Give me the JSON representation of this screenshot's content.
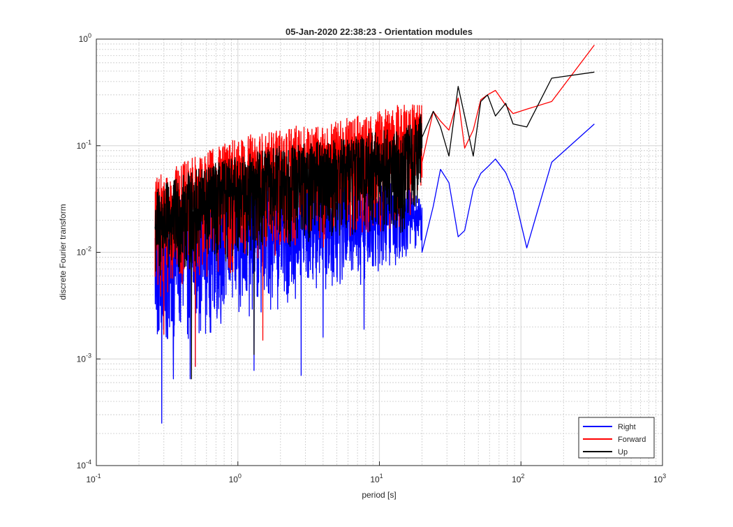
{
  "chart_data": {
    "type": "line",
    "title": "05-Jan-2020 22:38:23 - Orientation modules",
    "xlabel": "period [s]",
    "ylabel": "discrete Fourier transform",
    "x_scale": "log",
    "y_scale": "log",
    "xlim": [
      0.1,
      1000
    ],
    "ylim": [
      0.0001,
      1
    ],
    "grid": true,
    "minor_grid": true,
    "legend_position": "bottom-right",
    "x_tick_labels": [
      {
        "base": "10",
        "exp": "-1"
      },
      {
        "base": "10",
        "exp": "0"
      },
      {
        "base": "10",
        "exp": "1"
      },
      {
        "base": "10",
        "exp": "2"
      },
      {
        "base": "10",
        "exp": "3"
      }
    ],
    "y_tick_labels": [
      {
        "base": "10",
        "exp": "-4"
      },
      {
        "base": "10",
        "exp": "-3"
      },
      {
        "base": "10",
        "exp": "-2"
      },
      {
        "base": "10",
        "exp": "-1"
      },
      {
        "base": "10",
        "exp": "0"
      }
    ],
    "noise_region": {
      "x_start": 0.26,
      "x_end": 20,
      "note": "dense high-frequency oscillating spectrum (period 0.26 s to ~20 s)"
    },
    "series": [
      {
        "name": "Right",
        "color": "#0000ff",
        "noise_envelope": {
          "x": [
            0.26,
            0.5,
            1,
            2,
            4,
            8,
            15,
            20
          ],
          "low": [
            0.0009,
            0.0015,
            0.002,
            0.003,
            0.004,
            0.005,
            0.008,
            0.012
          ],
          "high": [
            0.025,
            0.035,
            0.045,
            0.05,
            0.05,
            0.05,
            0.045,
            0.03
          ]
        },
        "spikes": [
          [
            0.29,
            0.00025
          ],
          [
            0.35,
            0.00065
          ],
          [
            0.5,
            0.00085
          ],
          [
            0.46,
            0.00065
          ],
          [
            1.3,
            0.00078
          ],
          [
            2.8,
            0.0007
          ],
          [
            4.0,
            0.0016
          ],
          [
            7.8,
            0.0019
          ]
        ],
        "x": [
          20,
          24,
          27,
          31,
          36,
          40,
          46,
          52,
          58,
          66,
          78,
          88,
          110,
          165,
          330
        ],
        "y": [
          0.01,
          0.027,
          0.06,
          0.045,
          0.014,
          0.016,
          0.039,
          0.055,
          0.063,
          0.075,
          0.056,
          0.038,
          0.011,
          0.07,
          0.16
        ]
      },
      {
        "name": "Forward",
        "color": "#ff0000",
        "noise_envelope": {
          "x": [
            0.26,
            0.5,
            1,
            2,
            4,
            8,
            15,
            20
          ],
          "low": [
            0.003,
            0.005,
            0.006,
            0.008,
            0.01,
            0.012,
            0.015,
            0.03
          ],
          "high": [
            0.05,
            0.08,
            0.12,
            0.15,
            0.16,
            0.2,
            0.25,
            0.25
          ]
        },
        "spikes": [
          [
            0.5,
            0.00085
          ],
          [
            1.5,
            0.0015
          ],
          [
            0.3,
            0.0017
          ]
        ],
        "x": [
          20,
          24,
          27,
          31,
          36,
          40,
          46,
          52,
          58,
          66,
          78,
          88,
          110,
          165,
          330
        ],
        "y": [
          0.07,
          0.21,
          0.17,
          0.14,
          0.28,
          0.095,
          0.14,
          0.27,
          0.3,
          0.33,
          0.24,
          0.2,
          0.22,
          0.26,
          0.88
        ]
      },
      {
        "name": "Up",
        "color": "#000000",
        "noise_envelope": {
          "x": [
            0.26,
            0.5,
            1,
            2,
            4,
            8,
            15,
            20
          ],
          "low": [
            0.004,
            0.006,
            0.008,
            0.01,
            0.012,
            0.015,
            0.012,
            0.03
          ],
          "high": [
            0.04,
            0.06,
            0.08,
            0.1,
            0.11,
            0.13,
            0.15,
            0.2
          ]
        },
        "spikes": [
          [
            0.47,
            0.00065
          ],
          [
            1.3,
            0.0011
          ]
        ],
        "x": [
          20,
          24,
          27,
          31,
          36,
          40,
          46,
          52,
          58,
          66,
          78,
          88,
          110,
          165,
          330
        ],
        "y": [
          0.12,
          0.21,
          0.15,
          0.08,
          0.36,
          0.19,
          0.08,
          0.26,
          0.3,
          0.19,
          0.25,
          0.16,
          0.15,
          0.43,
          0.49
        ]
      }
    ]
  }
}
